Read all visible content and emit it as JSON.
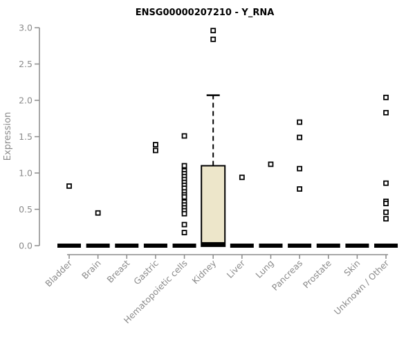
{
  "chart_data": {
    "type": "boxplot",
    "title": "ENSG00000207210 - Y_RNA",
    "xlabel": "",
    "ylabel": "Expression",
    "ylim": [
      0.0,
      3.0
    ],
    "yticks": [
      "0.0",
      "0.5",
      "1.0",
      "1.5",
      "2.0",
      "2.5",
      "3.0"
    ],
    "grid": false,
    "legend_position": "none",
    "categories": [
      "Bladder",
      "Brain",
      "Breast",
      "Gastric",
      "Hematopoietic cells",
      "Kidney",
      "Liver",
      "Lung",
      "Pancreas",
      "Prostate",
      "Skin",
      "Unknown / Other"
    ],
    "boxes": [
      {
        "category": "Bladder",
        "q1": 0,
        "median": 0,
        "q3": 0,
        "whisker_low": 0,
        "whisker_high": 0,
        "outliers": [
          0.82
        ]
      },
      {
        "category": "Brain",
        "q1": 0,
        "median": 0,
        "q3": 0,
        "whisker_low": 0,
        "whisker_high": 0,
        "outliers": [
          0.45
        ]
      },
      {
        "category": "Breast",
        "q1": 0,
        "median": 0,
        "q3": 0,
        "whisker_low": 0,
        "whisker_high": 0,
        "outliers": []
      },
      {
        "category": "Gastric",
        "q1": 0,
        "median": 0,
        "q3": 0,
        "whisker_low": 0,
        "whisker_high": 0,
        "outliers": [
          1.39,
          1.31
        ]
      },
      {
        "category": "Hematopoietic cells",
        "q1": 0,
        "median": 0,
        "q3": 0,
        "whisker_low": 0,
        "whisker_high": 0,
        "outliers": [
          1.51,
          1.1,
          1.03,
          0.99,
          0.95,
          0.91,
          0.87,
          0.83,
          0.79,
          0.74,
          0.7,
          0.67,
          0.6,
          0.56,
          0.52,
          0.48,
          0.44,
          0.29,
          0.18
        ]
      },
      {
        "category": "Kidney",
        "q1": 0.02,
        "median": 0.02,
        "q3": 1.1,
        "whisker_low": 0,
        "whisker_high": 2.07,
        "outliers": [
          2.96,
          2.84
        ]
      },
      {
        "category": "Liver",
        "q1": 0,
        "median": 0,
        "q3": 0,
        "whisker_low": 0,
        "whisker_high": 0,
        "outliers": [
          0.94
        ]
      },
      {
        "category": "Lung",
        "q1": 0,
        "median": 0,
        "q3": 0,
        "whisker_low": 0,
        "whisker_high": 0,
        "outliers": [
          1.12
        ]
      },
      {
        "category": "Pancreas",
        "q1": 0,
        "median": 0,
        "q3": 0,
        "whisker_low": 0,
        "whisker_high": 0,
        "outliers": [
          1.7,
          1.49,
          1.06,
          0.78
        ]
      },
      {
        "category": "Prostate",
        "q1": 0,
        "median": 0,
        "q3": 0,
        "whisker_low": 0,
        "whisker_high": 0,
        "outliers": []
      },
      {
        "category": "Skin",
        "q1": 0,
        "median": 0,
        "q3": 0,
        "whisker_low": 0,
        "whisker_high": 0,
        "outliers": []
      },
      {
        "category": "Unknown / Other",
        "q1": 0,
        "median": 0,
        "q3": 0,
        "whisker_low": 0,
        "whisker_high": 0,
        "outliers": [
          2.04,
          1.83,
          0.86,
          0.61,
          0.58,
          0.46,
          0.37
        ]
      }
    ],
    "colors": {
      "box_fill": "#EDE6CA",
      "box_stroke": "#000000",
      "median": "#000000",
      "outlier_stroke": "#000000",
      "axis": "#8a8a8a",
      "tick_label": "#8a8a8a",
      "title": "#000000",
      "background": "#ffffff"
    }
  }
}
